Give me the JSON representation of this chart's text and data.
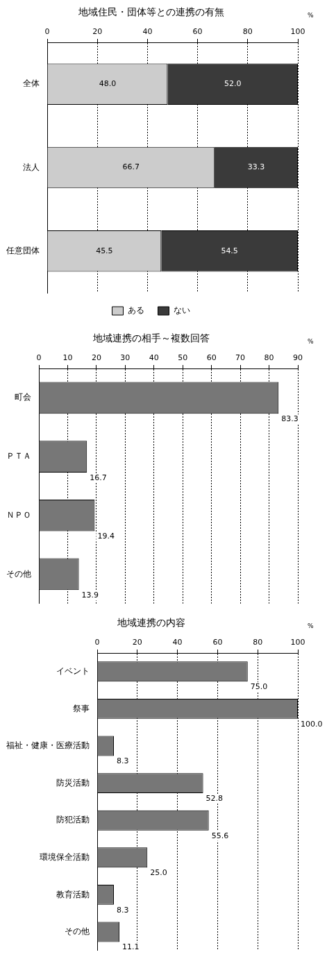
{
  "chart_data": [
    {
      "type": "bar",
      "orientation": "horizontal",
      "stacked": true,
      "title": "地域住民・団体等との連携の有無",
      "categories": [
        "全体",
        "法人",
        "任意団体"
      ],
      "series": [
        {
          "name": "ある",
          "color": "#cccccc",
          "values": [
            48.0,
            66.7,
            45.5
          ],
          "value_labels": [
            "48.0",
            "66.7",
            "45.5"
          ]
        },
        {
          "name": "ない",
          "color": "#3a3a3a",
          "values": [
            52.0,
            33.3,
            54.5
          ],
          "value_labels": [
            "52.0",
            "33.3",
            "54.5"
          ]
        }
      ],
      "xlim": [
        0,
        100
      ],
      "xticks": [
        0,
        20,
        40,
        60,
        80,
        100
      ],
      "annotations": [
        "%"
      ],
      "grid": "x",
      "legend": "bottom"
    },
    {
      "type": "bar",
      "orientation": "horizontal",
      "title": "地域連携の相手～複数回答",
      "categories": [
        "町会",
        "ＰＴＡ",
        "ＮＰＯ",
        "その他"
      ],
      "series": [
        {
          "color": "#777777",
          "values": [
            83.3,
            16.7,
            19.4,
            13.9
          ],
          "value_labels": [
            "83.3",
            "16.7",
            "19.4",
            "13.9"
          ]
        }
      ],
      "xlim": [
        0,
        90
      ],
      "xticks": [
        0,
        10,
        20,
        30,
        40,
        50,
        60,
        70,
        80,
        90
      ],
      "annotations": [
        "%"
      ],
      "grid": "x"
    },
    {
      "type": "bar",
      "orientation": "horizontal",
      "title": "地域連携の内容",
      "categories": [
        "イベント",
        "祭事",
        "福祉・健康・医療活動",
        "防災活動",
        "防犯活動",
        "環境保全活動",
        "教育活動",
        "その他"
      ],
      "series": [
        {
          "color": "#777777",
          "values": [
            75.0,
            100.0,
            8.3,
            52.8,
            55.6,
            25.0,
            8.3,
            11.1
          ],
          "value_labels": [
            "75.0",
            "100.0",
            "8.3",
            "52.8",
            "55.6",
            "25.0",
            "8.3",
            "11.1"
          ]
        }
      ],
      "xlim": [
        0,
        100
      ],
      "xticks": [
        0,
        20,
        40,
        60,
        80,
        100
      ],
      "annotations": [
        "%"
      ],
      "grid": "x"
    }
  ]
}
